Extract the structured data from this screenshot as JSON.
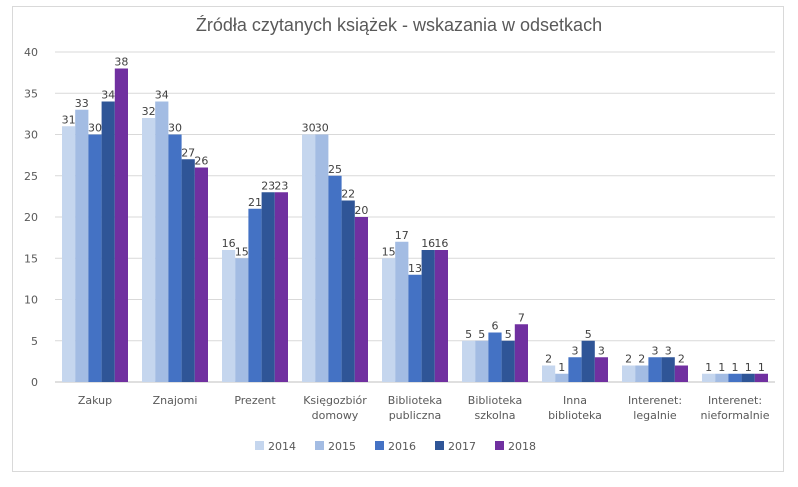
{
  "chart_data": {
    "type": "bar",
    "title": "Źródła czytanych książek - wskazania w odsetkach",
    "xlabel": "",
    "ylabel": "",
    "ylim": [
      0,
      40
    ],
    "yticks": [
      0,
      5,
      10,
      15,
      20,
      25,
      30,
      35,
      40
    ],
    "grid": true,
    "legend_position": "bottom",
    "categories": [
      [
        "Zakup"
      ],
      [
        "Znajomi"
      ],
      [
        "Prezent"
      ],
      [
        "Księgozbiór",
        "domowy"
      ],
      [
        "Biblioteka",
        "publiczna"
      ],
      [
        "Biblioteka",
        "szkolna"
      ],
      [
        "Inna",
        "biblioteka"
      ],
      [
        "Interenet:",
        "legalnie"
      ],
      [
        "Interenet:",
        "nieformalnie"
      ]
    ],
    "series": [
      {
        "name": "2014",
        "color": "#c5d6ee",
        "values": [
          31,
          32,
          16,
          30,
          15,
          5,
          2,
          2,
          1
        ]
      },
      {
        "name": "2015",
        "color": "#a3bce3",
        "values": [
          33,
          34,
          15,
          30,
          17,
          5,
          1,
          2,
          1
        ]
      },
      {
        "name": "2016",
        "color": "#4472c4",
        "values": [
          30,
          30,
          21,
          25,
          13,
          6,
          3,
          3,
          1
        ]
      },
      {
        "name": "2017",
        "color": "#2f5597",
        "values": [
          34,
          27,
          23,
          22,
          16,
          5,
          5,
          3,
          1
        ]
      },
      {
        "name": "2018",
        "color": "#7030a0",
        "values": [
          38,
          26,
          23,
          20,
          16,
          7,
          3,
          2,
          1
        ]
      }
    ],
    "gridline_color": "#d9d9d9",
    "axis_color": "#bfbfbf"
  }
}
